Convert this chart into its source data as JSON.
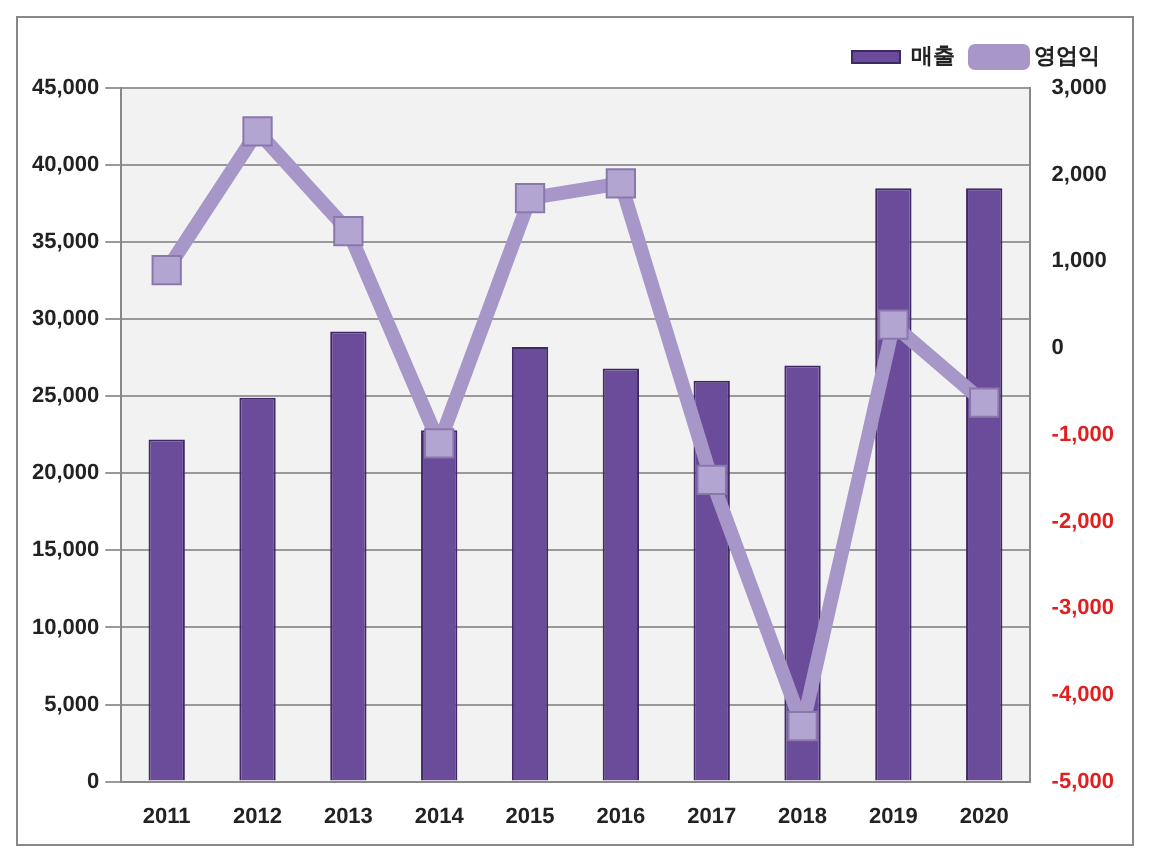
{
  "chart_data": {
    "type": "bar",
    "categories": [
      "2011",
      "2012",
      "2013",
      "2014",
      "2015",
      "2016",
      "2017",
      "2018",
      "2019",
      "2020"
    ],
    "series": [
      {
        "name": "매출",
        "color": "#6b4c9a",
        "values": [
          22200,
          24900,
          29200,
          22800,
          28200,
          26800,
          26000,
          27000,
          38500,
          38500
        ]
      },
      {
        "name": "영업익",
        "type": "line",
        "axis": "y2",
        "color": "#a796c8",
        "marker": "square",
        "values": [
          900,
          2500,
          1350,
          -1100,
          1730,
          1900,
          -1520,
          -4360,
          270,
          -630
        ]
      }
    ],
    "ylim": [
      0,
      45000
    ],
    "yticks": [
      0,
      {
        "value": 5000,
        "label": "5,000"
      },
      {
        "value": 10000,
        "label": "10,000"
      },
      {
        "value": 15000,
        "label": "15,000"
      },
      {
        "value": 20000,
        "label": "20,000"
      },
      {
        "value": 25000,
        "label": "25,000"
      },
      {
        "value": 30000,
        "label": "30,000"
      },
      {
        "value": 35000,
        "label": "35,000"
      },
      {
        "value": 40000,
        "label": "40,000"
      },
      {
        "value": 45000,
        "label": "45,000"
      }
    ],
    "y2lim": [
      -5000,
      3000
    ],
    "y2ticks": [
      {
        "value": -5000,
        "label": "-5,000"
      },
      {
        "value": -4000,
        "label": "-4,000"
      },
      {
        "value": -3000,
        "label": "-3,000"
      },
      {
        "value": -2000,
        "label": "-2,000"
      },
      {
        "value": -1000,
        "label": "-1,000"
      },
      0,
      {
        "value": 1000,
        "label": "1,000"
      },
      {
        "value": 2000,
        "label": "2,000"
      },
      {
        "value": 3000,
        "label": "3,000"
      }
    ],
    "grid": "y",
    "legend": "top right"
  }
}
